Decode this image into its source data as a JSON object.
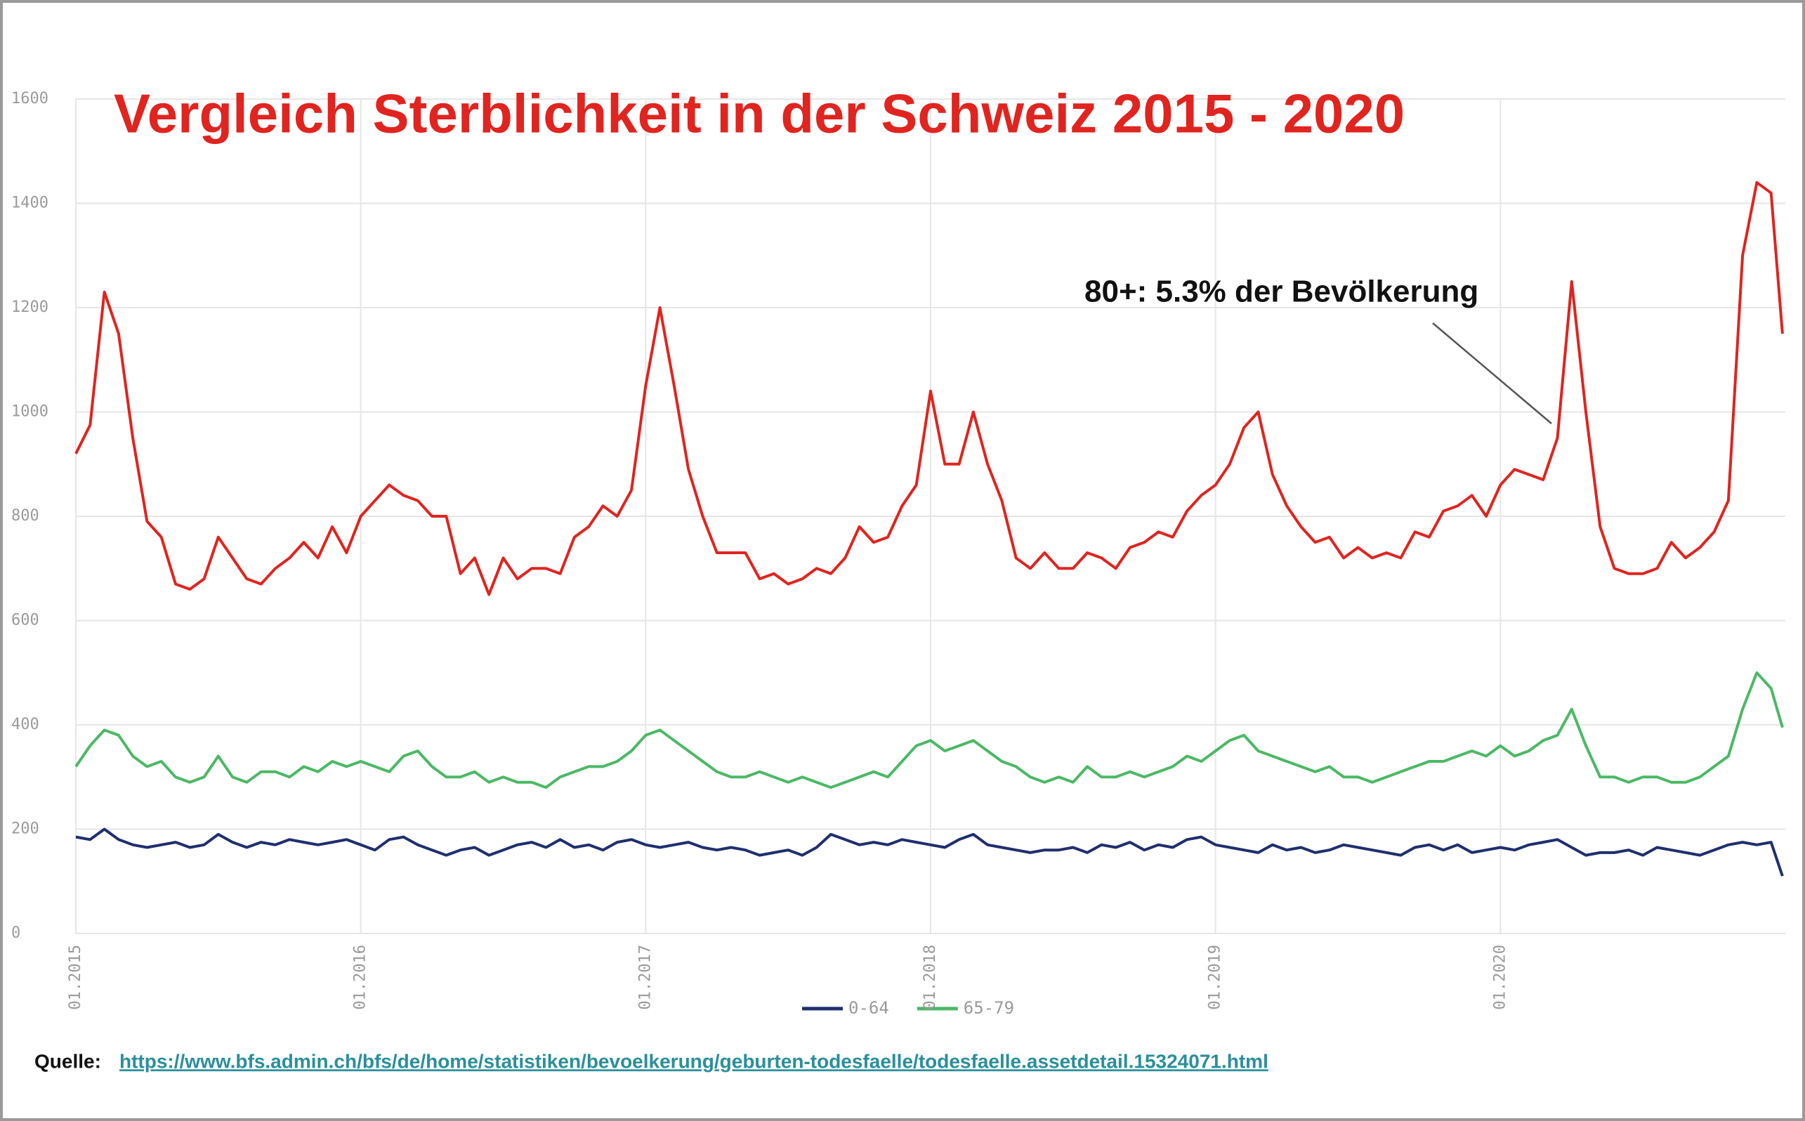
{
  "chart_data": {
    "type": "line",
    "title": "Vergleich Sterblichkeit in der Schweiz 2015 - 2020",
    "annotation": "80+: 5.3% der Bevölkerung",
    "source_label": "Quelle:",
    "source_url": "https://www.bfs.admin.ch/bfs/de/home/statistiken/bevoelkerung/geburten-todesfaelle/todesfaelle.assetdetail.15324071.html",
    "xlim": [
      2015,
      2021
    ],
    "xticks": [
      {
        "value": 2015,
        "label": "01.2015"
      },
      {
        "value": 2016,
        "label": "01.2016"
      },
      {
        "value": 2017,
        "label": "01.2017"
      },
      {
        "value": 2018,
        "label": "01.2018"
      },
      {
        "value": 2019,
        "label": "01.2019"
      },
      {
        "value": 2020,
        "label": "01.2020"
      }
    ],
    "ylim": [
      0,
      1600
    ],
    "yticks": [
      0,
      200,
      400,
      600,
      800,
      1000,
      1200,
      1400,
      1600
    ],
    "grid": true,
    "legend": "bottom",
    "x": [
      2015.0,
      2015.05,
      2015.1,
      2015.15,
      2015.2,
      2015.25,
      2015.3,
      2015.35,
      2015.4,
      2015.45,
      2015.5,
      2015.55,
      2015.6,
      2015.65,
      2015.7,
      2015.75,
      2015.8,
      2015.85,
      2015.9,
      2015.95,
      2016.0,
      2016.05,
      2016.1,
      2016.15,
      2016.2,
      2016.25,
      2016.3,
      2016.35,
      2016.4,
      2016.45,
      2016.5,
      2016.55,
      2016.6,
      2016.65,
      2016.7,
      2016.75,
      2016.8,
      2016.85,
      2016.9,
      2016.95,
      2017.0,
      2017.05,
      2017.1,
      2017.15,
      2017.2,
      2017.25,
      2017.3,
      2017.35,
      2017.4,
      2017.45,
      2017.5,
      2017.55,
      2017.6,
      2017.65,
      2017.7,
      2017.75,
      2017.8,
      2017.85,
      2017.9,
      2017.95,
      2018.0,
      2018.05,
      2018.1,
      2018.15,
      2018.2,
      2018.25,
      2018.3,
      2018.35,
      2018.4,
      2018.45,
      2018.5,
      2018.55,
      2018.6,
      2018.65,
      2018.7,
      2018.75,
      2018.8,
      2018.85,
      2018.9,
      2018.95,
      2019.0,
      2019.05,
      2019.1,
      2019.15,
      2019.2,
      2019.25,
      2019.3,
      2019.35,
      2019.4,
      2019.45,
      2019.5,
      2019.55,
      2019.6,
      2019.65,
      2019.7,
      2019.75,
      2019.8,
      2019.85,
      2019.9,
      2019.95,
      2020.0,
      2020.05,
      2020.1,
      2020.15,
      2020.2,
      2020.25,
      2020.3,
      2020.35,
      2020.4,
      2020.45,
      2020.5,
      2020.55,
      2020.6,
      2020.65,
      2020.7,
      2020.75,
      2020.8,
      2020.85,
      2020.9,
      2020.95,
      2020.99
    ],
    "series": [
      {
        "color": "#e0241f",
        "values": [
          920,
          975,
          1230,
          1150,
          950,
          790,
          760,
          670,
          660,
          680,
          760,
          720,
          680,
          670,
          700,
          720,
          750,
          720,
          780,
          730,
          800,
          830,
          860,
          840,
          830,
          800,
          800,
          690,
          720,
          650,
          720,
          680,
          700,
          700,
          690,
          760,
          780,
          820,
          800,
          850,
          1050,
          1200,
          1050,
          890,
          800,
          730,
          730,
          730,
          680,
          690,
          670,
          680,
          700,
          690,
          720,
          780,
          750,
          760,
          820,
          860,
          1040,
          900,
          900,
          1000,
          900,
          830,
          720,
          700,
          730,
          700,
          700,
          730,
          720,
          700,
          740,
          750,
          770,
          760,
          810,
          840,
          860,
          900,
          970,
          1000,
          880,
          820,
          780,
          750,
          760,
          720,
          740,
          720,
          730,
          720,
          770,
          760,
          810,
          820,
          840,
          800,
          860,
          890,
          880,
          870,
          950,
          1250,
          1000,
          780,
          700,
          690,
          690,
          700,
          750,
          720,
          740,
          770,
          830,
          1300,
          1440,
          1420,
          1150
        ]
      },
      {
        "name": "0-64",
        "color": "#1f2f6e",
        "values": [
          185,
          180,
          200,
          180,
          170,
          165,
          170,
          175,
          165,
          170,
          190,
          175,
          165,
          175,
          170,
          180,
          175,
          170,
          175,
          180,
          170,
          160,
          180,
          185,
          170,
          160,
          150,
          160,
          165,
          150,
          160,
          170,
          175,
          165,
          180,
          165,
          170,
          160,
          175,
          180,
          170,
          165,
          170,
          175,
          165,
          160,
          165,
          160,
          150,
          155,
          160,
          150,
          165,
          190,
          180,
          170,
          175,
          170,
          180,
          175,
          170,
          165,
          180,
          190,
          170,
          165,
          160,
          155,
          160,
          160,
          165,
          155,
          170,
          165,
          175,
          160,
          170,
          165,
          180,
          185,
          170,
          165,
          160,
          155,
          170,
          160,
          165,
          155,
          160,
          170,
          165,
          160,
          155,
          150,
          165,
          170,
          160,
          170,
          155,
          160,
          165,
          160,
          170,
          175,
          180,
          165,
          150,
          155,
          155,
          160,
          150,
          165,
          160,
          155,
          150,
          160,
          170,
          175,
          170,
          175,
          110
        ]
      },
      {
        "name": "65-79",
        "color": "#4cb865",
        "values": [
          320,
          360,
          390,
          380,
          340,
          320,
          330,
          300,
          290,
          300,
          340,
          300,
          290,
          310,
          310,
          300,
          320,
          310,
          330,
          320,
          330,
          320,
          310,
          340,
          350,
          320,
          300,
          300,
          310,
          290,
          300,
          290,
          290,
          280,
          300,
          310,
          320,
          320,
          330,
          350,
          380,
          390,
          370,
          350,
          330,
          310,
          300,
          300,
          310,
          300,
          290,
          300,
          290,
          280,
          290,
          300,
          310,
          300,
          330,
          360,
          370,
          350,
          360,
          370,
          350,
          330,
          320,
          300,
          290,
          300,
          290,
          320,
          300,
          300,
          310,
          300,
          310,
          320,
          340,
          330,
          350,
          370,
          380,
          350,
          340,
          330,
          320,
          310,
          320,
          300,
          300,
          290,
          300,
          310,
          320,
          330,
          330,
          340,
          350,
          340,
          360,
          340,
          350,
          370,
          380,
          430,
          360,
          300,
          300,
          290,
          300,
          300,
          290,
          290,
          300,
          320,
          340,
          430,
          500,
          470,
          395
        ]
      }
    ]
  }
}
